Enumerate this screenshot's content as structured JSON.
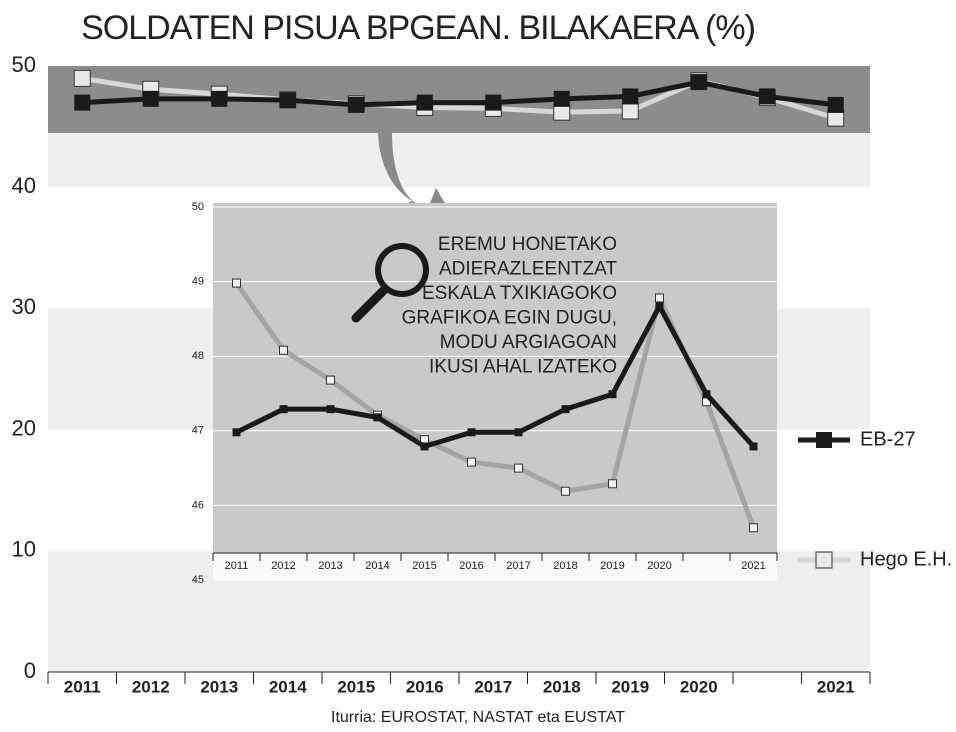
{
  "chart_data": [
    {
      "type": "line",
      "title": "SOLDATEN PISUA  BPGEAN. BILAKAERA (%)",
      "categories": [
        "2011",
        "2012",
        "2013",
        "2014",
        "2015",
        "2016",
        "2017",
        "2018",
        "2019",
        "2020",
        null,
        "2021"
      ],
      "series": [
        {
          "name": "EB-27",
          "color": "#1a1a1a",
          "values": [
            46.98,
            47.29,
            47.29,
            47.18,
            46.79,
            46.98,
            46.98,
            47.29,
            47.49,
            48.67,
            47.49,
            46.79
          ]
        },
        {
          "name": "Hego E.H.",
          "color": "#d6d6d6",
          "values": [
            48.98,
            48.08,
            47.68,
            47.21,
            46.88,
            46.58,
            46.5,
            46.19,
            46.29,
            48.78,
            47.39,
            45.7
          ]
        }
      ],
      "ylim": [
        0,
        50
      ],
      "yticks": [
        0,
        10,
        20,
        30,
        40,
        50
      ],
      "source": "Iturria: EUROSTAT, NASTAT eta EUSTAT"
    },
    {
      "type": "line",
      "categories": [
        "2011",
        "2012",
        "2013",
        "2014",
        "2015",
        "2016",
        "2017",
        "2018",
        "2019",
        "2020",
        null,
        "2021"
      ],
      "series": [
        {
          "color": "#1a1a1a",
          "values": [
            46.98,
            47.29,
            47.29,
            47.18,
            46.79,
            46.98,
            46.98,
            47.29,
            47.49,
            48.67,
            47.49,
            46.79
          ]
        },
        {
          "color": "#a4a4a4",
          "values": [
            48.98,
            48.08,
            47.68,
            47.21,
            46.88,
            46.58,
            46.5,
            46.19,
            46.29,
            48.78,
            47.39,
            45.7
          ]
        }
      ],
      "ylim": [
        45,
        50
      ],
      "yticks": [
        45,
        46,
        47,
        48,
        49,
        50
      ],
      "annotation_lines": [
        "EREMU HONETAKO",
        "ADIERAZLEENTZAT",
        "ESKALA TXIKIAGOKO",
        "GRAFIKOA EGIN DUGU,",
        "MODU ARGIAGOAN",
        "IKUSI AHAL IZATEKO"
      ]
    }
  ]
}
